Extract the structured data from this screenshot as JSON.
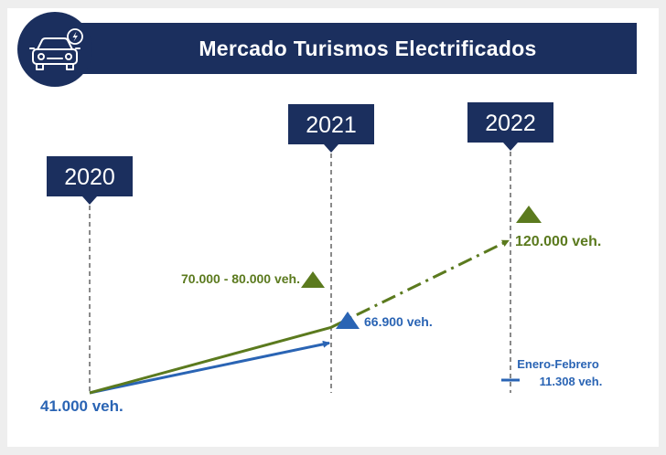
{
  "header": {
    "title": "Mercado Turismos Electrificados",
    "icon": "electric-car-icon"
  },
  "colors": {
    "navy": "#1b2f5e",
    "green": "#5b7a1e",
    "blue": "#2a64b4",
    "guide": "#8a8a8a"
  },
  "chart_data": {
    "type": "line",
    "title": "Mercado Turismos Electrificados",
    "x": [
      "2020",
      "2021",
      "2022"
    ],
    "series": [
      {
        "values": [
          41000,
          75000,
          120000
        ],
        "labels": [
          "41.000 veh.",
          "70.000 - 80.000 veh.",
          "120.000 veh."
        ],
        "color": "#5b7a1e",
        "segment_2_style": "dash-dot"
      },
      {
        "values": [
          41000,
          66900,
          null
        ],
        "labels": [
          "41.000 veh.",
          "66.900 veh.",
          null
        ],
        "color": "#2a64b4"
      }
    ],
    "annotations": [
      {
        "x": "2022",
        "line1": "Enero-Febrero",
        "line2": "11.308 veh.",
        "value": 11308,
        "color": "#2a64b4"
      }
    ]
  }
}
